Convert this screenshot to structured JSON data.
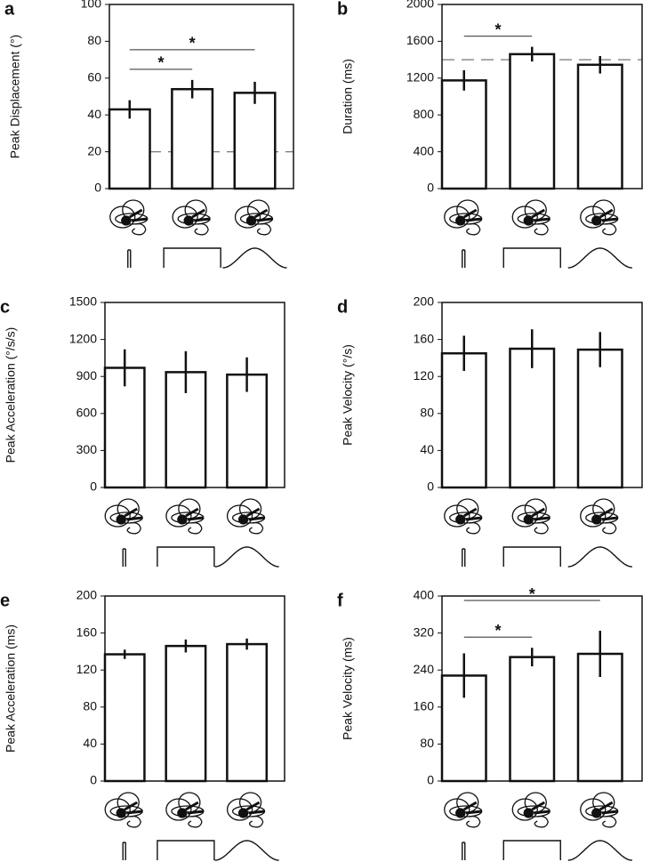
{
  "chart_data": [
    {
      "type": "bar",
      "panel_label": "a",
      "ylabel": "Peak Displacement (°)",
      "categories": [
        null,
        null,
        null
      ],
      "values": [
        43,
        54,
        52
      ],
      "errors": [
        5,
        5,
        6
      ],
      "color": "#ffffff",
      "ylim": [
        0,
        100
      ],
      "yticks": [
        0,
        20,
        40,
        60,
        80,
        100
      ],
      "reference_line": 20,
      "annotations": [
        {
          "text": "*",
          "between": [
            0,
            1
          ]
        },
        {
          "text": "*",
          "between": [
            0,
            2
          ]
        }
      ]
    },
    {
      "type": "bar",
      "panel_label": "b",
      "ylabel": "Duration (ms)",
      "categories": [
        null,
        null,
        null
      ],
      "values": [
        1175,
        1460,
        1345
      ],
      "errors": [
        110,
        80,
        95
      ],
      "color": "#ffffff",
      "ylim": [
        0,
        2000
      ],
      "yticks": [
        0,
        400,
        800,
        1200,
        1600,
        2000
      ],
      "reference_line": 1400,
      "annotations": [
        {
          "text": "*",
          "between": [
            0,
            1
          ]
        }
      ]
    },
    {
      "type": "bar",
      "panel_label": "c",
      "ylabel": "Peak Acceleration (°/s/s)",
      "categories": [
        null,
        null,
        null
      ],
      "values": [
        970,
        935,
        915
      ],
      "errors": [
        150,
        170,
        140
      ],
      "color": "#ffffff",
      "ylim": [
        0,
        1500
      ],
      "yticks": [
        0,
        300,
        600,
        900,
        1200,
        1500
      ]
    },
    {
      "type": "bar",
      "panel_label": "d",
      "ylabel": "Peak Velocity (°/s)",
      "categories": [
        null,
        null,
        null
      ],
      "values": [
        145,
        150,
        149
      ],
      "errors": [
        19,
        21,
        19
      ],
      "color": "#ffffff",
      "ylim": [
        0,
        200
      ],
      "yticks": [
        0,
        40,
        80,
        120,
        160,
        200
      ]
    },
    {
      "type": "bar",
      "panel_label": "e",
      "ylabel": "Peak Acceleration (ms)",
      "categories": [
        null,
        null,
        null
      ],
      "values": [
        137,
        146,
        148
      ],
      "errors": [
        5,
        7,
        6
      ],
      "color": "#ffffff",
      "ylim": [
        0,
        200
      ],
      "yticks": [
        0,
        40,
        80,
        120,
        160,
        200
      ]
    },
    {
      "type": "bar",
      "panel_label": "f",
      "ylabel": "Peak Velocity (ms)",
      "categories": [
        null,
        null,
        null
      ],
      "values": [
        228,
        268,
        275
      ],
      "errors": [
        48,
        20,
        50
      ],
      "color": "#ffffff",
      "ylim": [
        0,
        400
      ],
      "yticks": [
        0,
        80,
        160,
        240,
        320,
        400
      ],
      "annotations": [
        {
          "text": "*",
          "between": [
            0,
            1
          ]
        },
        {
          "text": "*",
          "between": [
            0,
            2
          ]
        }
      ]
    }
  ]
}
